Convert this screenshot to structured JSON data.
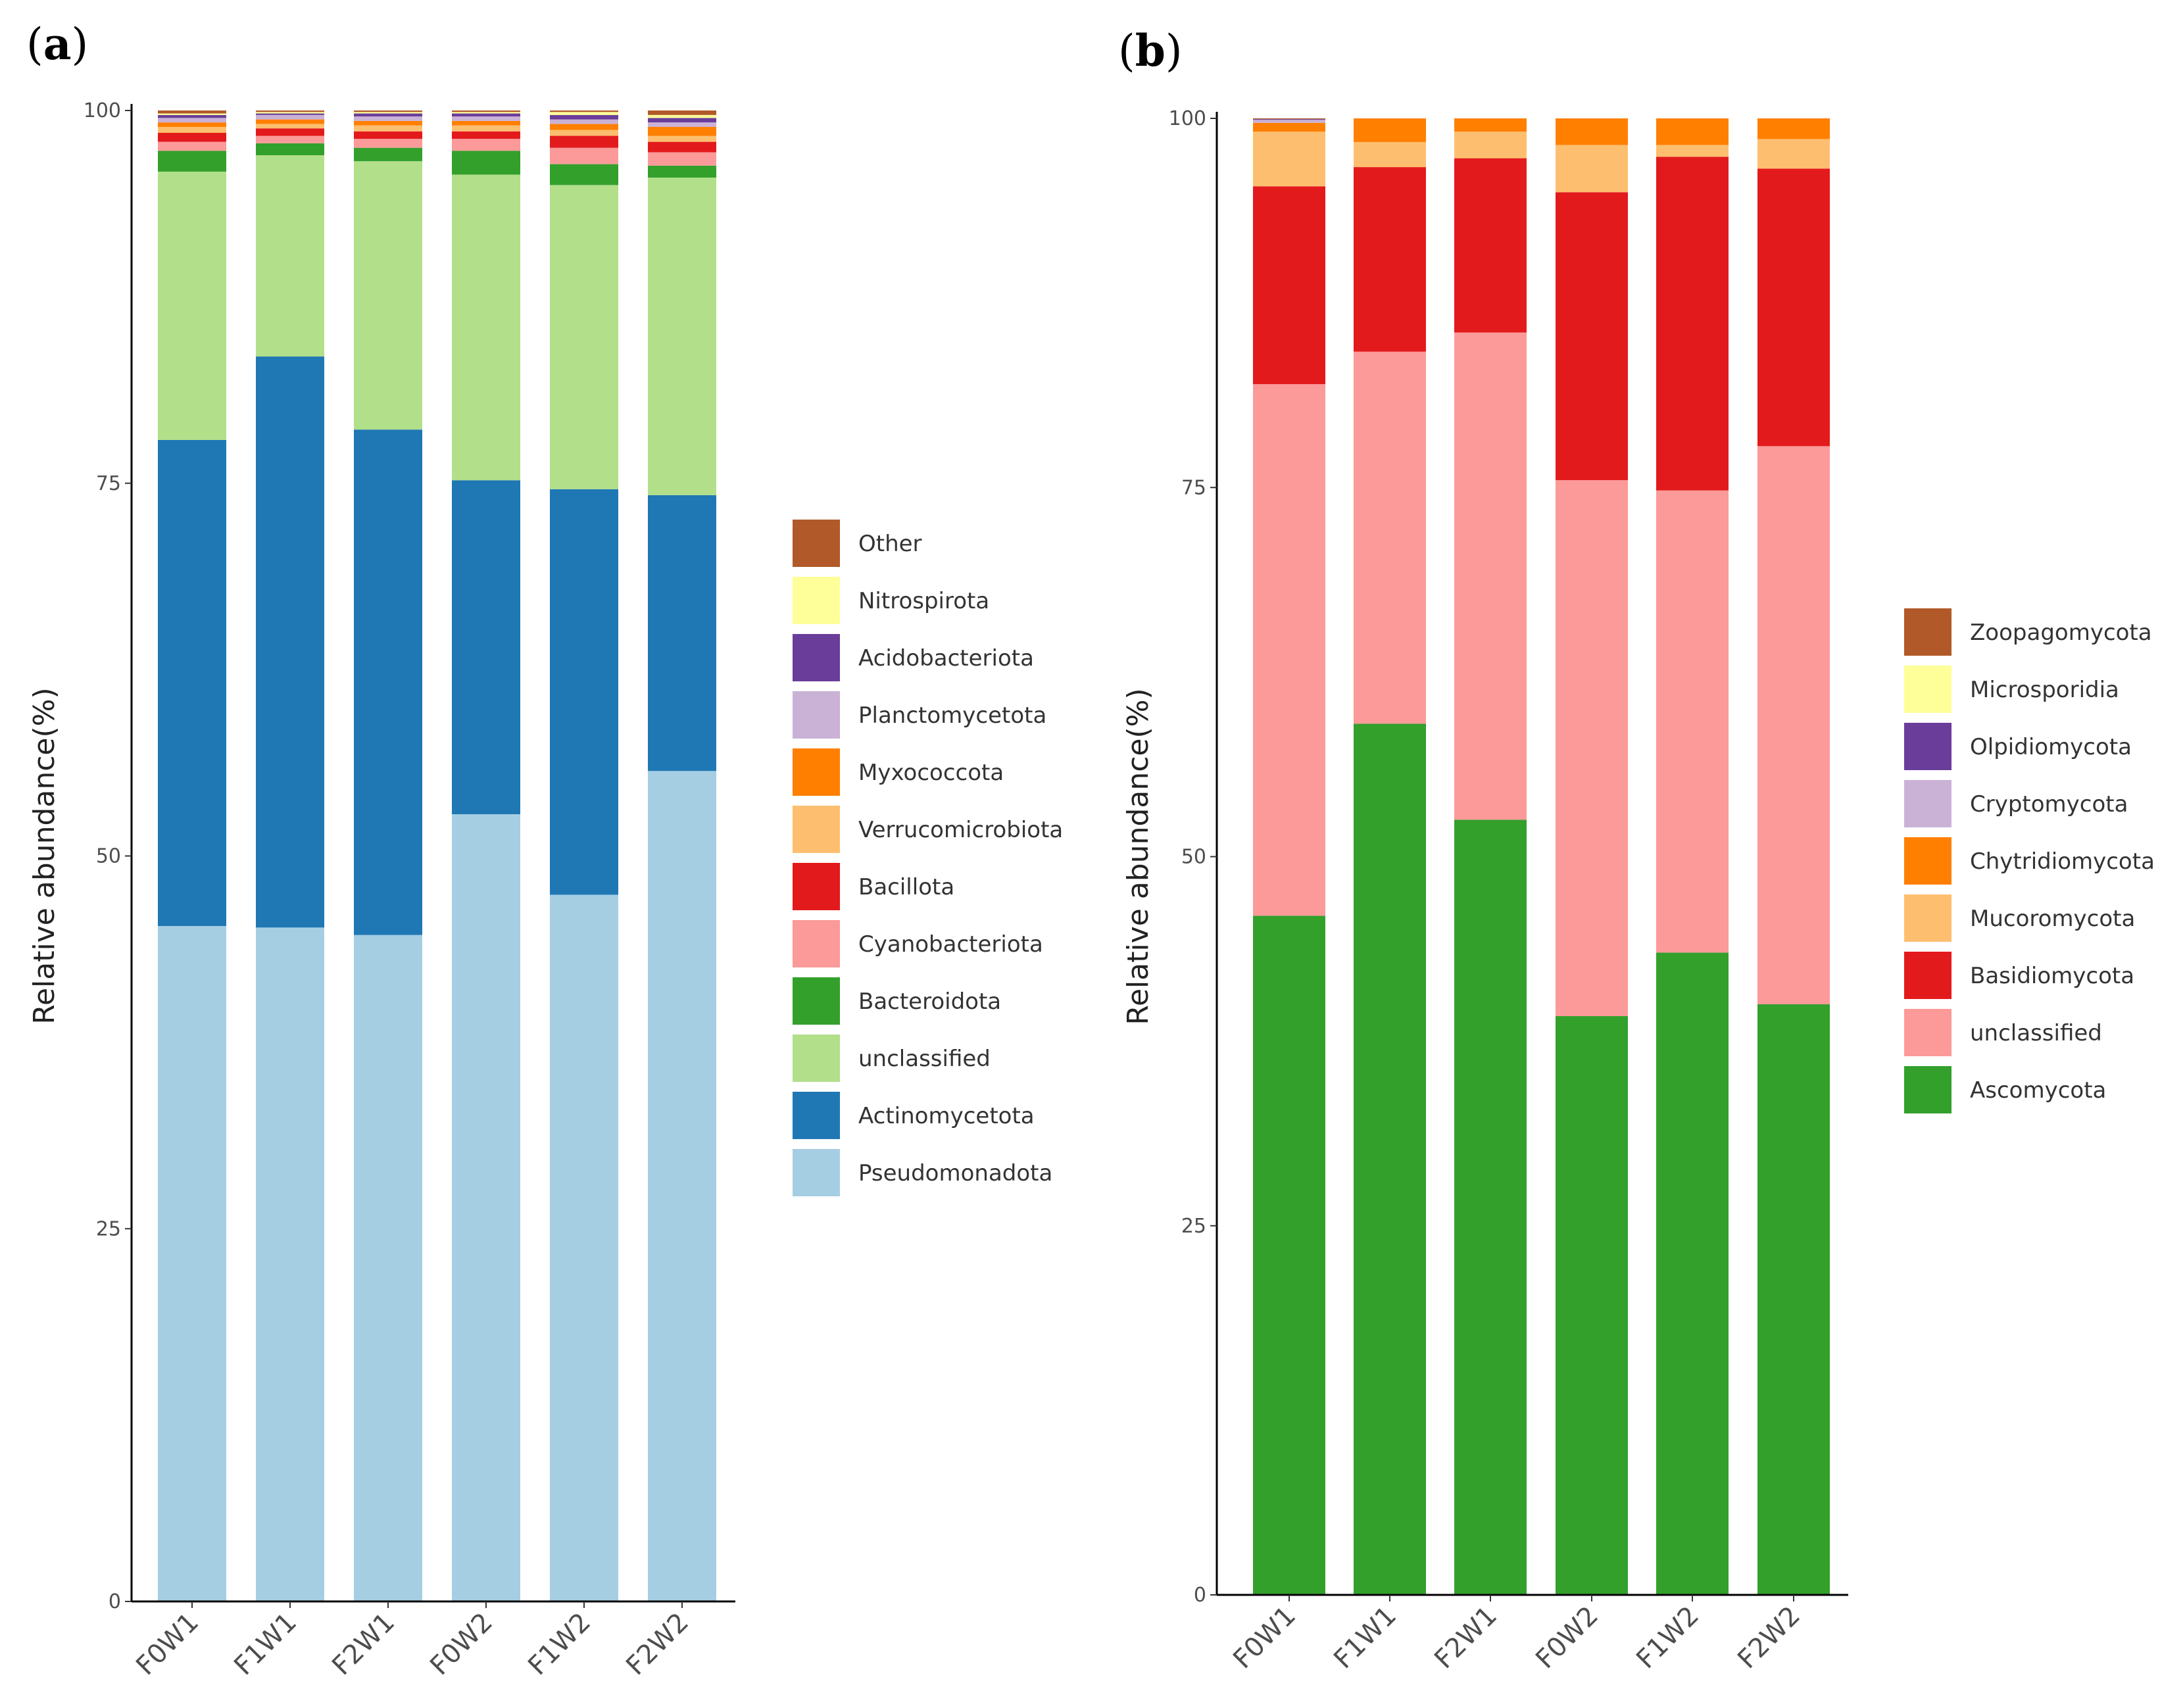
{
  "chart_data": [
    {
      "type": "stacked-bar",
      "panel_label": "a",
      "ylabel": "Relative abundance(%)",
      "xlabel": "",
      "ylim": [
        0,
        100
      ],
      "yticks": [
        0,
        25,
        50,
        75,
        100
      ],
      "grid": false,
      "legend_position": "right",
      "categories": [
        "F0W1",
        "F1W1",
        "F2W1",
        "F0W2",
        "F1W2",
        "F2W2"
      ],
      "series": [
        {
          "name": "Pseudomonadota",
          "color": "#a6cee3",
          "values": [
            45.3,
            45.2,
            44.7,
            52.8,
            47.4,
            55.7
          ]
        },
        {
          "name": "Actinomycetota",
          "color": "#1f78b4",
          "values": [
            32.6,
            38.3,
            33.9,
            22.4,
            27.2,
            18.5
          ]
        },
        {
          "name": "unclassified",
          "color": "#b2df8a",
          "values": [
            18.0,
            13.5,
            18.0,
            20.5,
            20.4,
            21.3
          ]
        },
        {
          "name": "Bacteroidota",
          "color": "#33a02c",
          "values": [
            1.4,
            0.8,
            0.9,
            1.6,
            1.4,
            0.8
          ]
        },
        {
          "name": "Cyanobacteriota",
          "color": "#fb9a99",
          "values": [
            0.6,
            0.5,
            0.6,
            0.8,
            1.1,
            0.9
          ]
        },
        {
          "name": "Bacillota",
          "color": "#e31a1c",
          "values": [
            0.6,
            0.5,
            0.5,
            0.5,
            0.8,
            0.7
          ]
        },
        {
          "name": "Verrucomicrobiota",
          "color": "#fdbf6f",
          "values": [
            0.4,
            0.3,
            0.4,
            0.4,
            0.4,
            0.4
          ]
        },
        {
          "name": "Myxococcota",
          "color": "#ff7f00",
          "values": [
            0.3,
            0.3,
            0.3,
            0.3,
            0.4,
            0.6
          ]
        },
        {
          "name": "Planctomycetota",
          "color": "#cab2d6",
          "values": [
            0.3,
            0.3,
            0.3,
            0.3,
            0.3,
            0.3
          ]
        },
        {
          "name": "Acidobacteriota",
          "color": "#6a3d9a",
          "values": [
            0.2,
            0.1,
            0.2,
            0.2,
            0.3,
            0.3
          ]
        },
        {
          "name": "Nitrospirota",
          "color": "#ffff99",
          "values": [
            0.1,
            0.1,
            0.1,
            0.1,
            0.2,
            0.2
          ]
        },
        {
          "name": "Other",
          "color": "#b15928",
          "values": [
            0.2,
            0.1,
            0.1,
            0.1,
            0.1,
            0.3
          ]
        }
      ]
    },
    {
      "type": "stacked-bar",
      "panel_label": "b",
      "ylabel": "Relative abundance(%)",
      "xlabel": "",
      "ylim": [
        0,
        100
      ],
      "yticks": [
        0,
        25,
        50,
        75,
        100
      ],
      "grid": false,
      "legend_position": "right",
      "categories": [
        "F0W1",
        "F1W1",
        "F2W1",
        "F0W2",
        "F1W2",
        "F2W2"
      ],
      "series": [
        {
          "name": "Ascomycota",
          "color": "#33a02c",
          "values": [
            46.0,
            59.0,
            52.5,
            39.2,
            43.5,
            40.0
          ]
        },
        {
          "name": "unclassified",
          "color": "#fb9a99",
          "values": [
            36.0,
            25.2,
            33.0,
            36.3,
            31.3,
            37.8
          ]
        },
        {
          "name": "Basidiomycota",
          "color": "#e31a1c",
          "values": [
            13.4,
            12.5,
            11.8,
            19.5,
            22.6,
            18.8
          ]
        },
        {
          "name": "Mucoromycota",
          "color": "#fdbf6f",
          "values": [
            3.7,
            1.7,
            1.8,
            3.2,
            0.8,
            2.0
          ]
        },
        {
          "name": "Chytridiomycota",
          "color": "#ff7f00",
          "values": [
            0.6,
            1.6,
            0.9,
            1.8,
            1.8,
            1.4
          ]
        },
        {
          "name": "Cryptomycota",
          "color": "#cab2d6",
          "values": [
            0.2,
            0.0,
            0.0,
            0.0,
            0.0,
            0.0
          ]
        },
        {
          "name": "Olpidiomycota",
          "color": "#6a3d9a",
          "values": [
            0.05,
            0.0,
            0.0,
            0.0,
            0.0,
            0.0
          ]
        },
        {
          "name": "Microsporidia",
          "color": "#ffff99",
          "values": [
            0.0,
            0.0,
            0.0,
            0.0,
            0.0,
            0.0
          ]
        },
        {
          "name": "Zoopagomycota",
          "color": "#b15928",
          "values": [
            0.05,
            0.0,
            0.0,
            0.0,
            0.0,
            0.0
          ]
        }
      ]
    }
  ]
}
